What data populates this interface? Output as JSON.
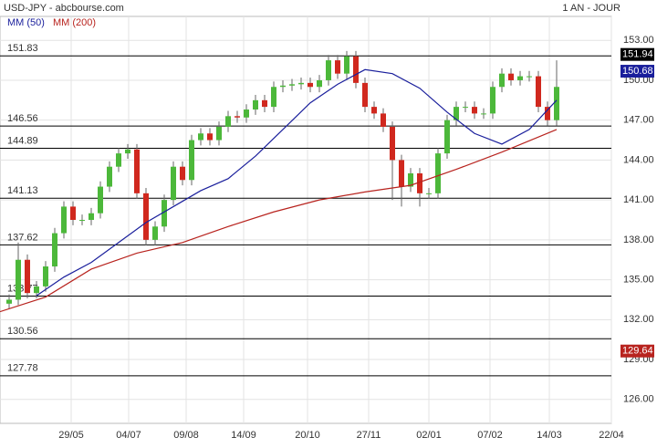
{
  "chart_data": {
    "type": "candlestick",
    "title": "USD-JPY - abcbourse.com",
    "subtitle": "1 AN - JOUR",
    "x": [
      1,
      2,
      3,
      4,
      5,
      6,
      7,
      8,
      9,
      10,
      11,
      12,
      13,
      14,
      15,
      16,
      17,
      18,
      19,
      20,
      21,
      22,
      23,
      24,
      25,
      26,
      27,
      28,
      29,
      30,
      31,
      32,
      33,
      34,
      35,
      36,
      37,
      38,
      39,
      40,
      41,
      42,
      43,
      44,
      45,
      46,
      47,
      48,
      49,
      50,
      51,
      52,
      53,
      54,
      55,
      56,
      57,
      58,
      59,
      60,
      61
    ],
    "open": [
      133.2,
      133.5,
      136.5,
      134,
      134.5,
      136,
      138.5,
      140.5,
      139.5,
      139.5,
      140,
      142,
      143.5,
      144.5,
      144.8,
      141.5,
      138,
      139,
      141,
      143.5,
      142.5,
      145.5,
      146,
      145.5,
      146.5,
      147.3,
      147.2,
      147.8,
      148.5,
      148,
      149.5,
      149.6,
      149.7,
      149.8,
      149.5,
      150,
      151.5,
      150.5,
      151.8,
      149.8,
      148,
      147.5,
      146.5,
      144,
      142,
      143,
      141.5,
      141.5,
      144.5,
      147,
      148,
      148,
      147.5,
      147.5,
      149.5,
      150.5,
      150,
      150.3,
      150.3,
      148,
      147
    ],
    "high": [
      133.9,
      137.8,
      136.9,
      134.9,
      136.4,
      138.9,
      140.9,
      140.9,
      139.9,
      140.4,
      142.4,
      143.9,
      144.9,
      145.2,
      145.2,
      141.9,
      139.4,
      141.4,
      143.9,
      143.9,
      145.9,
      146.4,
      146.4,
      146.9,
      147.7,
      147.7,
      148.2,
      148.9,
      148.9,
      149.9,
      150,
      150.1,
      150.2,
      150.2,
      150.4,
      151.9,
      151.9,
      152.2,
      152.2,
      150.2,
      148.4,
      147.9,
      146.9,
      144.4,
      143.4,
      143.4,
      141.9,
      144.9,
      147.4,
      148.4,
      148.4,
      148.4,
      147.9,
      149.9,
      150.9,
      150.9,
      150.7,
      150.7,
      150.7,
      148.4,
      151.5
    ],
    "low": [
      132.8,
      133.1,
      133.6,
      133.6,
      134.1,
      135.6,
      138.1,
      139.1,
      139.1,
      139.1,
      139.6,
      141.6,
      143.1,
      144.1,
      141.1,
      137.6,
      137.6,
      138.6,
      140.6,
      142.1,
      142.1,
      145.1,
      145.1,
      145.1,
      146.1,
      146.8,
      146.8,
      147.4,
      147.6,
      147.6,
      149.1,
      149.2,
      149.3,
      149.1,
      149.1,
      149.6,
      150.1,
      150.1,
      149.4,
      147.6,
      147.1,
      146.1,
      141,
      140.5,
      141.6,
      140.5,
      141.1,
      141.1,
      144.1,
      146.6,
      147.6,
      147.1,
      147.1,
      147.1,
      149.1,
      149.6,
      149.6,
      149.9,
      147.6,
      146.6,
      146.6
    ],
    "close": [
      133.5,
      136.5,
      134,
      134.5,
      136,
      138.5,
      140.5,
      139.5,
      139.5,
      140,
      142,
      143.5,
      144.5,
      144.8,
      141.5,
      138,
      139,
      141,
      143.5,
      142.5,
      145.5,
      146,
      145.5,
      146.5,
      147.3,
      147.2,
      147.8,
      148.5,
      148,
      149.5,
      149.6,
      149.7,
      149.8,
      149.5,
      150,
      151.5,
      150.5,
      151.8,
      149.8,
      148,
      147.5,
      146.5,
      144,
      142,
      143,
      141.5,
      141.5,
      144.5,
      147,
      148,
      148,
      147.5,
      147.5,
      149.5,
      150.5,
      150,
      150.3,
      150.3,
      148,
      147,
      149.5
    ],
    "up_color": "#4cb83a",
    "down_color": "#d0281e",
    "series": [
      {
        "name": "MM (50)",
        "color": "#1a1f9c",
        "x": [
          4,
          7,
          10,
          13,
          16,
          19,
          22,
          25,
          28,
          31,
          34,
          37,
          40,
          43,
          46,
          49,
          52,
          55,
          58,
          61
        ],
        "values": [
          133.8,
          135.2,
          136.3,
          137.8,
          139.3,
          140.5,
          141.7,
          142.6,
          144.3,
          146.3,
          148.3,
          149.7,
          150.8,
          150.5,
          149.4,
          147.6,
          146,
          145.2,
          146.3,
          148.5
        ]
      },
      {
        "name": "MM (200)",
        "color": "#b8231e",
        "x": [
          0,
          5,
          10,
          15,
          20,
          25,
          30,
          35,
          40,
          45,
          50,
          55,
          61
        ],
        "values": [
          132.6,
          133.7,
          135.8,
          137.0,
          137.8,
          139.0,
          140.1,
          141.0,
          141.6,
          142.1,
          143.3,
          144.6,
          146.3
        ]
      }
    ],
    "levels": [
      151.83,
      146.56,
      144.89,
      141.13,
      137.62,
      133.77,
      130.56,
      127.78
    ],
    "price_tags": [
      {
        "value": 151.94,
        "color": "#000000"
      },
      {
        "value": 150.68,
        "color": "#1a1f9c"
      },
      {
        "value": 129.64,
        "color": "#b8231e"
      }
    ],
    "xlim": [
      0,
      67
    ],
    "xticks": [
      {
        "value": 7.8,
        "label": "29/05"
      },
      {
        "value": 14.1,
        "label": "04/07"
      },
      {
        "value": 20.4,
        "label": "09/08"
      },
      {
        "value": 26.7,
        "label": "14/09"
      },
      {
        "value": 33.7,
        "label": "20/10"
      },
      {
        "value": 40.4,
        "label": "27/11"
      },
      {
        "value": 47.0,
        "label": "02/01"
      },
      {
        "value": 53.7,
        "label": "07/02"
      },
      {
        "value": 60.2,
        "label": "14/03"
      },
      {
        "value": 67.0,
        "label": "22/04"
      }
    ],
    "ylim": [
      124.2,
      154.8
    ],
    "yticks": [
      {
        "value": 153,
        "label": "153.00"
      },
      {
        "value": 150,
        "label": "150.00"
      },
      {
        "value": 147,
        "label": "147.00"
      },
      {
        "value": 144,
        "label": "144.00"
      },
      {
        "value": 141,
        "label": "141.00"
      },
      {
        "value": 138,
        "label": "138.00"
      },
      {
        "value": 135,
        "label": "135.00"
      },
      {
        "value": 132,
        "label": "132.00"
      },
      {
        "value": 129,
        "label": "129.00"
      },
      {
        "value": 126,
        "label": "126.00"
      }
    ],
    "grid": true
  }
}
